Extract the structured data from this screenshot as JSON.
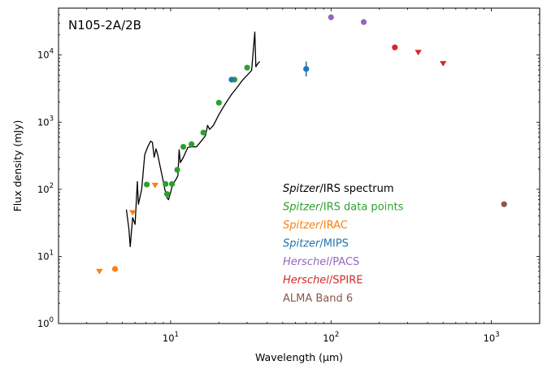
{
  "chart_data": {
    "type": "scatter",
    "title": "N105-2A/2B",
    "xlabel": "Wavelength (μm)",
    "ylabel": "Flux density (mJy)",
    "xscale": "log",
    "yscale": "log",
    "xlim": [
      2,
      2000
    ],
    "ylim": [
      1,
      50000
    ],
    "grid": false,
    "legend_position": "center-right",
    "x_ticks": [
      {
        "value": 10,
        "exp": "1"
      },
      {
        "value": 100,
        "exp": "2"
      },
      {
        "value": 1000,
        "exp": "3"
      }
    ],
    "y_ticks": [
      {
        "value": 1,
        "exp": "0"
      },
      {
        "value": 10,
        "exp": "1"
      },
      {
        "value": 100,
        "exp": "2"
      },
      {
        "value": 1000,
        "exp": "3"
      },
      {
        "value": 10000,
        "exp": "4"
      }
    ],
    "tick_base": "10",
    "series": [
      {
        "name_italic": "Spitzer",
        "name_rest": "/IRS spectrum",
        "color": "#000000",
        "marker": "line",
        "points": [
          [
            5.3,
            50
          ],
          [
            5.5,
            25
          ],
          [
            5.6,
            14
          ],
          [
            5.8,
            38
          ],
          [
            6.0,
            30
          ],
          [
            6.2,
            130
          ],
          [
            6.3,
            60
          ],
          [
            6.6,
            100
          ],
          [
            6.9,
            330
          ],
          [
            7.2,
            430
          ],
          [
            7.5,
            520
          ],
          [
            7.7,
            500
          ],
          [
            7.9,
            300
          ],
          [
            8.1,
            400
          ],
          [
            8.3,
            330
          ],
          [
            8.6,
            220
          ],
          [
            8.9,
            150
          ],
          [
            9.2,
            100
          ],
          [
            9.5,
            75
          ],
          [
            9.7,
            70
          ],
          [
            10.0,
            90
          ],
          [
            10.3,
            120
          ],
          [
            10.8,
            140
          ],
          [
            11.1,
            160
          ],
          [
            11.3,
            390
          ],
          [
            11.5,
            250
          ],
          [
            12.0,
            300
          ],
          [
            12.8,
            420
          ],
          [
            13.5,
            430
          ],
          [
            14.5,
            430
          ],
          [
            15.5,
            520
          ],
          [
            16.5,
            630
          ],
          [
            17.0,
            900
          ],
          [
            17.5,
            780
          ],
          [
            18.5,
            900
          ],
          [
            20.0,
            1300
          ],
          [
            22.0,
            1900
          ],
          [
            24.0,
            2600
          ],
          [
            26.0,
            3300
          ],
          [
            28.0,
            4200
          ],
          [
            30.0,
            5000
          ],
          [
            32.0,
            5900
          ],
          [
            33.5,
            22000
          ],
          [
            34.0,
            6700
          ],
          [
            35.0,
            7500
          ],
          [
            36.0,
            8000
          ]
        ]
      },
      {
        "name_italic": "Spitzer",
        "name_rest": "/IRS data points",
        "color": "#2ca02c",
        "marker": "circle",
        "points": [
          [
            7.1,
            118
          ],
          [
            9.3,
            120
          ],
          [
            9.5,
            85
          ],
          [
            10.2,
            120
          ],
          [
            11.0,
            195
          ],
          [
            12.0,
            430
          ],
          [
            13.5,
            470
          ],
          [
            16.0,
            700
          ],
          [
            20.0,
            1950
          ],
          [
            25.0,
            4300
          ],
          [
            30.0,
            6500
          ]
        ]
      },
      {
        "name_italic": "Spitzer",
        "name_rest": "/IRAC",
        "color": "#ff7f0e",
        "marker": "mixed",
        "points": [
          [
            3.6,
            6,
            "tri"
          ],
          [
            4.5,
            6.5,
            "circle"
          ],
          [
            5.8,
            45,
            "tri"
          ],
          [
            8.0,
            115,
            "tri"
          ]
        ]
      },
      {
        "name_italic": "Spitzer",
        "name_rest": "/MIPS",
        "color": "#1f77b4",
        "marker": "circle",
        "points": [
          [
            24,
            4300
          ],
          [
            70,
            6200
          ]
        ],
        "errors": [
          [
            24,
            4300,
            4300
          ],
          [
            70,
            4800,
            8000
          ]
        ]
      },
      {
        "name_italic": "Herschel",
        "name_rest": "/PACS",
        "color": "#9467bd",
        "marker": "circle",
        "points": [
          [
            100,
            36500
          ],
          [
            160,
            31000
          ]
        ]
      },
      {
        "name_italic": "Herschel",
        "name_rest": "/SPIRE",
        "color": "#d62728",
        "marker": "mixed",
        "points": [
          [
            250,
            13000,
            "circle"
          ],
          [
            350,
            11000,
            "tri"
          ],
          [
            500,
            7500,
            "tri"
          ]
        ]
      },
      {
        "name_italic": "",
        "name_rest": "ALMA Band 6",
        "color": "#8c564b",
        "marker": "circle",
        "points": [
          [
            1200,
            60
          ]
        ]
      }
    ]
  }
}
